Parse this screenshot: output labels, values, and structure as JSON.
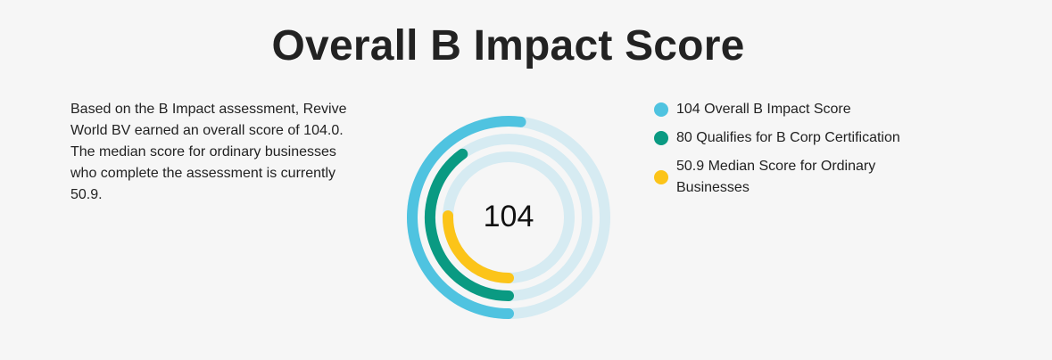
{
  "title": "Overall B Impact Score",
  "description": "Based on the B Impact assessment, Revive World BV earned an overall score of 104.0. The median score for ordinary businesses who complete the assessment is currently 50.9.",
  "colors": {
    "track": "#d6ebf2",
    "overall": "#4fc3e0",
    "certification": "#0a9a82",
    "median": "#fcc419"
  },
  "chart_data": {
    "type": "radial-bar",
    "center_label": "104",
    "max": 200,
    "series": [
      {
        "name": "104 Overall B Impact Score",
        "value": 104,
        "color": "#4fc3e0"
      },
      {
        "name": "80 Qualifies for B Corp Certification",
        "value": 80,
        "color": "#0a9a82"
      },
      {
        "name": "50.9 Median Score for Ordinary Businesses",
        "value": 50.9,
        "color": "#fcc419"
      }
    ]
  }
}
